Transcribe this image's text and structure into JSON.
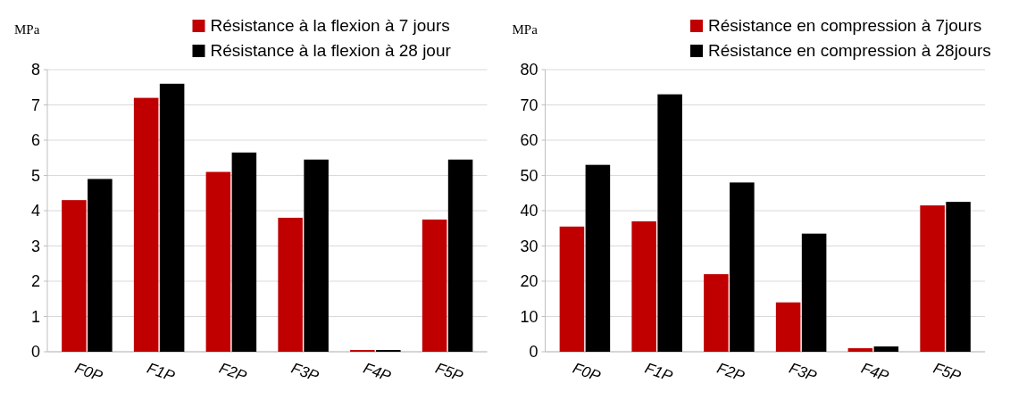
{
  "chart_data": [
    {
      "type": "bar",
      "ylabel": "MPa",
      "categories": [
        "F0P",
        "F1P",
        "F2P",
        "F3P",
        "F4P",
        "F5P"
      ],
      "ylim": [
        0,
        8
      ],
      "yticks": [
        0,
        1,
        2,
        3,
        4,
        5,
        6,
        7,
        8
      ],
      "grid": "y",
      "legend": "top right",
      "series": [
        {
          "name": "Résistance à la flexion à 7 jours",
          "color": "#c00000",
          "values": [
            4.3,
            7.2,
            5.1,
            3.8,
            0.05,
            3.75
          ]
        },
        {
          "name": "Résistance à la flexion à 28 jour",
          "color": "#000000",
          "values": [
            4.9,
            7.6,
            5.65,
            5.45,
            0.05,
            5.45
          ]
        }
      ]
    },
    {
      "type": "bar",
      "ylabel": "MPa",
      "categories": [
        "F0P",
        "F1P",
        "F2P",
        "F3P",
        "F4P",
        "F5P"
      ],
      "ylim": [
        0,
        80
      ],
      "yticks": [
        0,
        10,
        20,
        30,
        40,
        50,
        60,
        70,
        80
      ],
      "grid": "y",
      "legend": "top right",
      "series": [
        {
          "name": "Résistance en compression à 7jours",
          "color": "#c00000",
          "values": [
            35.5,
            37,
            22,
            14,
            1,
            41.5
          ]
        },
        {
          "name": "Résistance en compression à 28jours",
          "color": "#000000",
          "values": [
            53,
            73,
            48,
            33.5,
            1.5,
            42.5
          ]
        }
      ]
    }
  ]
}
